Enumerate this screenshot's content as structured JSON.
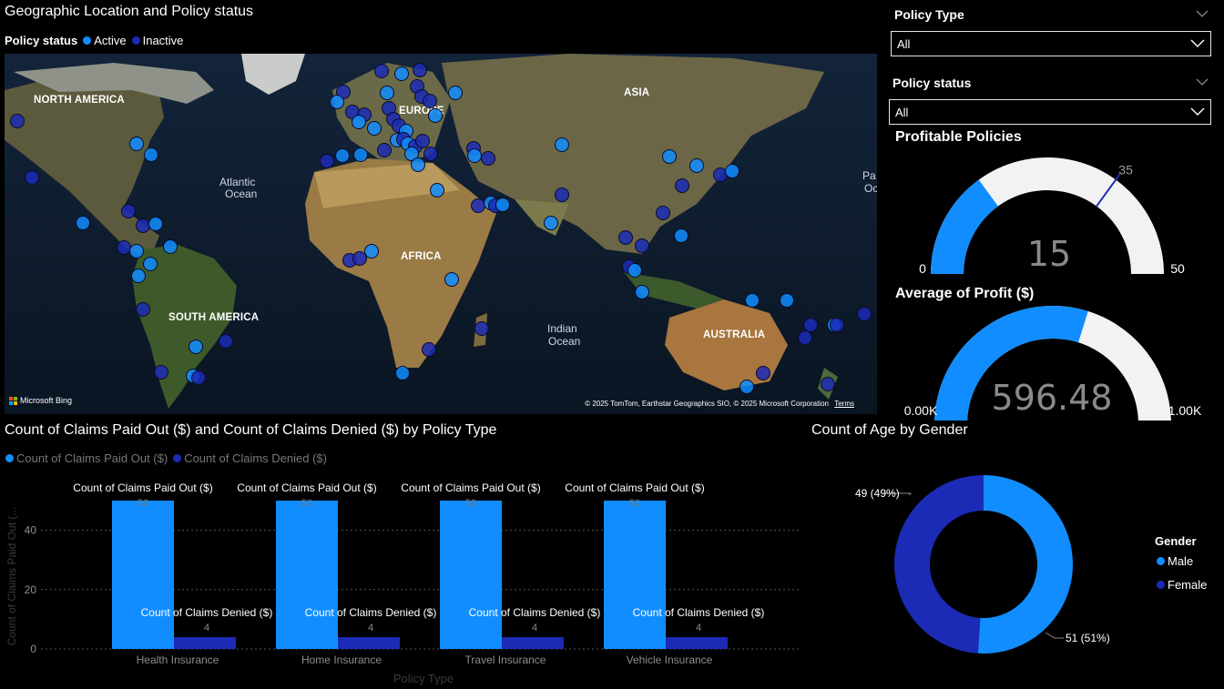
{
  "map_visual": {
    "title": "Geographic Location and Policy status",
    "legend_title": "Policy status",
    "legend_items": [
      {
        "label": "Active",
        "color": "#118DFF"
      },
      {
        "label": "Inactive",
        "color": "#1B2BB5"
      }
    ],
    "continent_labels": [
      "NORTH AMERICA",
      "EUROPE",
      "ASIA",
      "AFRICA",
      "SOUTH AMERICA",
      "AUSTRALIA"
    ],
    "ocean_labels": [
      {
        "line1": "Atlantic",
        "line2": "Ocean"
      },
      {
        "line1": "Indian",
        "line2": "Ocean"
      },
      {
        "line1": "Pa",
        "line2": "Oc"
      }
    ],
    "attribution": "© 2025 TomTom, Earthstar Geographics SIO, © 2025 Microsoft Corporation",
    "terms_link": "Terms",
    "bing_logo": "Microsoft Bing"
  },
  "filters": {
    "policy_type": {
      "title": "Policy Type",
      "value": "All"
    },
    "policy_status": {
      "title": "Policy status",
      "value": "All"
    }
  },
  "gauge_profitable": {
    "title": "Profitable Policies",
    "value": "15",
    "min": "0",
    "max": "50",
    "target": "35",
    "fill_fraction": 0.3,
    "target_fraction": 0.7
  },
  "gauge_profit": {
    "title": "Average of Profit ($)",
    "value": "596.48",
    "min": "0.00K",
    "max": "1.00K",
    "fill_fraction": 0.59648
  },
  "claims_chart": {
    "title": "Count of Claims Paid Out ($) and Count of Claims Denied ($) by Policy Type",
    "legend": [
      {
        "label": "Count of Claims Paid Out ($)",
        "color": "#118DFF"
      },
      {
        "label": "Count of Claims Denied ($)",
        "color": "#1B2BB5"
      }
    ],
    "y_axis_label": "Count of Claims Paid Out (...",
    "x_axis_label": "Policy Type",
    "paid_label": "Count of Claims Paid Out ($)",
    "denied_label": "Count of Claims Denied ($)",
    "y_ticks": [
      "0",
      "20",
      "40"
    ]
  },
  "gender_chart": {
    "title": "Count of Age by Gender",
    "legend_title": "Gender",
    "legend_items": [
      {
        "label": "Male",
        "color": "#118DFF"
      },
      {
        "label": "Female",
        "color": "#1B2BB5"
      }
    ],
    "label_female": "49 (49%)",
    "label_male": "51 (51%)"
  },
  "chart_data": [
    {
      "type": "bar",
      "title": "Count of Claims Paid Out ($) and Count of Claims Denied ($) by Policy Type",
      "categories": [
        "Health Insurance",
        "Home Insurance",
        "Travel Insurance",
        "Vehicle Insurance"
      ],
      "series": [
        {
          "name": "Count of Claims Paid Out ($)",
          "values": [
            50,
            50,
            50,
            50
          ],
          "labels": [
            "50",
            "50",
            "50",
            "50"
          ],
          "color": "#118DFF"
        },
        {
          "name": "Count of Claims Denied ($)",
          "values": [
            4,
            4,
            4,
            4
          ],
          "labels": [
            "4",
            "4",
            "4",
            "4"
          ],
          "color": "#1B2BB5"
        }
      ],
      "xlabel": "Policy Type",
      "ylabel": "Count of Claims Paid Out (...",
      "ylim": [
        0,
        50
      ],
      "grid": true,
      "legend": "top-left"
    },
    {
      "type": "pie",
      "title": "Count of Age by Gender",
      "categories": [
        "Male",
        "Female"
      ],
      "values": [
        51,
        49
      ],
      "labels": [
        "51 (51%)",
        "49 (49%)"
      ],
      "colors": [
        "#118DFF",
        "#1B2BB5"
      ],
      "legend": "right"
    }
  ]
}
